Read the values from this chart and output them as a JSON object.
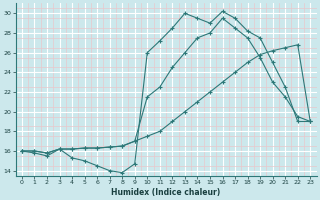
{
  "xlabel": "Humidex (Indice chaleur)",
  "bg_color": "#cce8ec",
  "line_color": "#2d7878",
  "grid_major_color": "#ffffff",
  "grid_minor_color": "#e8c8cc",
  "xlim": [
    -0.5,
    23.5
  ],
  "ylim": [
    13.5,
    31.0
  ],
  "yticks": [
    14,
    16,
    18,
    20,
    22,
    24,
    26,
    28,
    30
  ],
  "xticks": [
    0,
    1,
    2,
    3,
    4,
    5,
    6,
    7,
    8,
    9,
    10,
    11,
    12,
    13,
    14,
    15,
    16,
    17,
    18,
    19,
    20,
    21,
    22,
    23
  ],
  "line1_x": [
    0,
    1,
    2,
    3,
    4,
    5,
    6,
    7,
    8,
    9,
    10,
    11,
    12,
    13,
    14,
    15,
    16,
    17,
    18,
    19,
    20,
    21,
    22,
    23
  ],
  "line1_y": [
    16,
    16,
    15.8,
    16.2,
    16.2,
    16.3,
    16.3,
    16.4,
    16.5,
    17.0,
    17.5,
    18.0,
    19.0,
    20.0,
    21.0,
    22.0,
    23.0,
    24.0,
    25.0,
    25.8,
    26.2,
    26.5,
    26.8,
    19.0
  ],
  "line2_x": [
    0,
    1,
    2,
    3,
    4,
    5,
    6,
    7,
    8,
    9,
    10,
    11,
    12,
    13,
    14,
    15,
    16,
    17,
    18,
    19,
    20,
    21,
    22,
    23
  ],
  "line2_y": [
    16,
    15.8,
    15.5,
    16.2,
    15.3,
    15.0,
    14.5,
    14.0,
    13.8,
    14.7,
    26.0,
    27.2,
    28.5,
    30.0,
    29.5,
    29.0,
    30.2,
    29.5,
    28.2,
    27.5,
    25.0,
    22.5,
    19.0,
    19.0
  ],
  "line3_x": [
    0,
    1,
    2,
    3,
    4,
    5,
    6,
    7,
    8,
    9,
    10,
    11,
    12,
    13,
    14,
    15,
    16,
    17,
    18,
    19,
    20,
    21,
    22,
    23
  ],
  "line3_y": [
    16,
    16,
    15.8,
    16.2,
    16.2,
    16.3,
    16.3,
    16.4,
    16.5,
    17.0,
    21.5,
    22.5,
    24.5,
    26.0,
    27.5,
    28.0,
    29.5,
    28.5,
    27.5,
    25.5,
    23.0,
    21.5,
    19.5,
    19.0
  ]
}
